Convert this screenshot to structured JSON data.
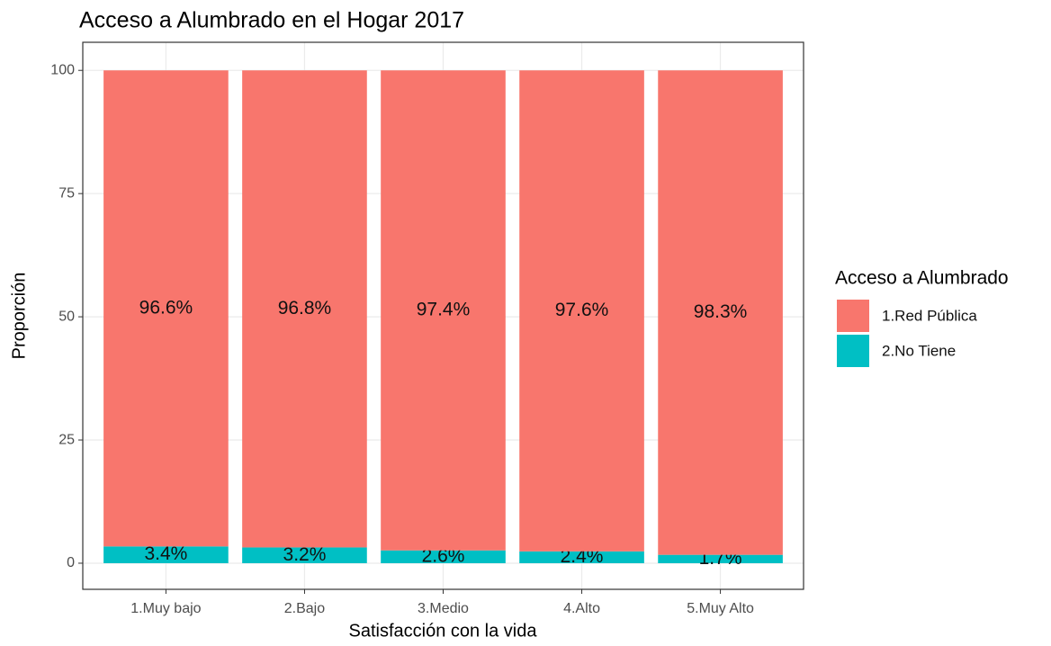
{
  "chart_data": {
    "type": "stacked_bar",
    "title": "Acceso a Alumbrado en el Hogar 2017",
    "x_label": "Satisfacción con la vida",
    "y_label": "Proporción",
    "legend_title": "Acceso a Alumbrado",
    "legend_position": "right",
    "grid": true,
    "categories": [
      "1.Muy bajo",
      "2.Bajo",
      "3.Medio",
      "4.Alto",
      "5.Muy Alto"
    ],
    "series": [
      {
        "name": "1.Red Pública",
        "color": "#f8766d",
        "values": [
          96.6,
          96.8,
          97.4,
          97.6,
          98.3
        ],
        "value_labels": [
          "96.6%",
          "96.8%",
          "97.4%",
          "97.6%",
          "98.3%"
        ]
      },
      {
        "name": "2.No Tiene",
        "color": "#00bfc4",
        "values": [
          3.4,
          3.2,
          2.6,
          2.4,
          1.7
        ],
        "value_labels": [
          "3.4%",
          "3.2%",
          "2.6%",
          "2.4%",
          "1.7%"
        ]
      }
    ],
    "ylim": [
      -5.3,
      105.7
    ],
    "yticks": [
      0,
      25,
      50,
      75,
      100
    ]
  }
}
